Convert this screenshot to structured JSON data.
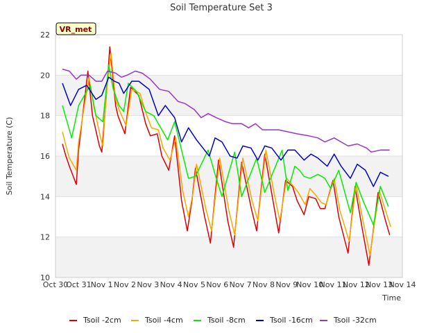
{
  "chart_data": {
    "type": "line",
    "title": "Soil Temperature Set 3",
    "xlabel": "Time",
    "ylabel": "Soil Temperature (C)",
    "ylim": [
      10,
      22
    ],
    "xlim": [
      0,
      15
    ],
    "yticks": [
      10,
      12,
      14,
      16,
      18,
      20,
      22
    ],
    "xticks": [
      {
        "x": 0,
        "label": "Oct 30"
      },
      {
        "x": 1,
        "label": "Oct 31"
      },
      {
        "x": 2,
        "label": "Nov 1"
      },
      {
        "x": 3,
        "label": "Nov 2"
      },
      {
        "x": 4,
        "label": "Nov 3"
      },
      {
        "x": 5,
        "label": "Nov 4"
      },
      {
        "x": 6,
        "label": "Nov 5"
      },
      {
        "x": 7,
        "label": "Nov 6"
      },
      {
        "x": 8,
        "label": "Nov 7"
      },
      {
        "x": 9,
        "label": "Nov 8"
      },
      {
        "x": 10,
        "label": "Nov 9"
      },
      {
        "x": 11,
        "label": "Nov 10"
      },
      {
        "x": 12,
        "label": "Nov 11"
      },
      {
        "x": 13,
        "label": "Nov 12"
      },
      {
        "x": 14,
        "label": "Nov 13"
      },
      {
        "x": 15,
        "label": "Nov 14"
      }
    ],
    "x_units": "days since Oct 30",
    "station_label": "VR_met",
    "series": [
      {
        "name": "Tsoil -2cm",
        "color": "#dd0000",
        "x": [
          0.3,
          0.45,
          0.6,
          0.9,
          1.0,
          1.4,
          1.6,
          1.9,
          2.0,
          2.2,
          2.35,
          2.6,
          2.7,
          3.0,
          3.25,
          3.6,
          3.9,
          4.1,
          4.4,
          4.6,
          4.9,
          5.15,
          5.45,
          5.7,
          5.9,
          6.05,
          6.45,
          6.7,
          7.05,
          7.45,
          7.7,
          8.05,
          8.45,
          8.7,
          9.05,
          9.45,
          9.65,
          9.95,
          10.25,
          10.45,
          10.75,
          10.95,
          11.25,
          11.45,
          11.65,
          12.0,
          12.25,
          12.65,
          12.95,
          13.25,
          13.55,
          13.95,
          14.25,
          14.45
        ],
        "y": [
          16.6,
          16.0,
          15.5,
          14.6,
          16.3,
          20.2,
          18.0,
          16.5,
          16.2,
          19.0,
          21.4,
          18.5,
          18.0,
          17.1,
          19.4,
          19.0,
          17.6,
          17.0,
          17.1,
          16.0,
          15.3,
          17.0,
          13.8,
          12.3,
          13.8,
          15.4,
          13.0,
          11.7,
          15.8,
          12.8,
          11.5,
          15.7,
          13.5,
          12.3,
          16.1,
          13.5,
          12.2,
          14.8,
          14.5,
          13.8,
          13.1,
          14.0,
          13.9,
          13.4,
          13.4,
          14.8,
          13.0,
          11.2,
          14.5,
          12.5,
          10.6,
          14.2,
          12.9,
          12.1
        ]
      },
      {
        "name": "Tsoil -4cm",
        "color": "#ffa500",
        "x": [
          0.3,
          0.5,
          0.6,
          0.9,
          1.0,
          1.45,
          1.65,
          1.95,
          2.05,
          2.2,
          2.4,
          2.6,
          2.75,
          3.05,
          3.3,
          3.65,
          3.95,
          4.15,
          4.45,
          4.65,
          4.95,
          5.2,
          5.5,
          5.75,
          5.95,
          6.1,
          6.5,
          6.75,
          7.1,
          7.5,
          7.75,
          8.1,
          8.5,
          8.75,
          9.1,
          9.5,
          9.7,
          10.0,
          10.3,
          10.5,
          10.8,
          11.0,
          11.3,
          11.5,
          11.7,
          12.05,
          12.3,
          12.7,
          13.0,
          13.3,
          13.6,
          14.0,
          14.3,
          14.5
        ],
        "y": [
          17.2,
          16.3,
          15.9,
          15.3,
          16.7,
          19.9,
          18.5,
          16.9,
          16.5,
          19.1,
          21.1,
          18.8,
          18.3,
          17.5,
          19.3,
          19.1,
          18.0,
          17.4,
          17.3,
          16.4,
          15.8,
          16.9,
          14.3,
          13.0,
          14.2,
          15.6,
          13.4,
          12.3,
          15.9,
          13.3,
          12.1,
          15.9,
          13.8,
          12.8,
          16.3,
          13.9,
          12.8,
          14.9,
          14.5,
          14.2,
          13.6,
          14.4,
          14.0,
          13.7,
          13.6,
          14.9,
          13.3,
          11.8,
          14.6,
          12.8,
          11.1,
          14.3,
          13.2,
          12.5
        ]
      },
      {
        "name": "Tsoil -8cm",
        "color": "#00ee00",
        "x": [
          0.3,
          0.7,
          1.0,
          1.5,
          1.75,
          2.05,
          2.3,
          2.5,
          2.75,
          2.95,
          3.15,
          3.5,
          3.9,
          4.25,
          4.85,
          5.15,
          5.75,
          6.05,
          6.6,
          6.9,
          7.2,
          7.75,
          8.05,
          8.7,
          9.05,
          9.8,
          10.05,
          10.35,
          10.55,
          10.75,
          11.0,
          11.35,
          11.65,
          11.9,
          12.25,
          12.75,
          13.0,
          13.3,
          13.75,
          14.05,
          14.4
        ],
        "y": [
          18.5,
          16.9,
          18.5,
          19.5,
          18.0,
          17.7,
          20.5,
          19.3,
          18.5,
          18.2,
          19.6,
          19.2,
          18.2,
          18.0,
          16.8,
          17.7,
          14.9,
          15.0,
          16.3,
          15.1,
          14.0,
          16.2,
          14.0,
          15.9,
          14.2,
          16.3,
          14.3,
          15.5,
          15.3,
          15.0,
          14.9,
          15.1,
          14.9,
          14.4,
          15.3,
          13.2,
          14.7,
          13.8,
          12.6,
          14.5,
          13.5
        ]
      },
      {
        "name": "Tsoil -16cm",
        "color": "#0000cc",
        "x": [
          0.3,
          0.65,
          1.0,
          1.35,
          1.75,
          2.0,
          2.3,
          2.55,
          2.75,
          2.95,
          3.3,
          3.6,
          4.05,
          4.45,
          4.75,
          5.15,
          5.45,
          5.75,
          6.1,
          6.65,
          6.9,
          7.2,
          7.55,
          7.85,
          8.1,
          8.45,
          8.75,
          9.05,
          9.35,
          9.75,
          10.05,
          10.35,
          10.75,
          11.05,
          11.35,
          11.75,
          12.05,
          12.35,
          12.75,
          13.05,
          13.4,
          13.75,
          14.05,
          14.4
        ],
        "y": [
          19.6,
          18.5,
          19.3,
          19.5,
          18.8,
          19.0,
          19.9,
          19.7,
          19.6,
          19.1,
          19.7,
          19.7,
          19.3,
          18.0,
          18.5,
          17.9,
          16.7,
          17.4,
          16.8,
          16.0,
          16.9,
          16.7,
          16.0,
          15.9,
          16.5,
          16.4,
          15.8,
          16.5,
          16.4,
          15.8,
          16.3,
          16.3,
          15.8,
          16.1,
          15.9,
          15.5,
          16.1,
          15.5,
          14.9,
          15.6,
          15.3,
          14.5,
          15.2,
          15.0
        ]
      },
      {
        "name": "Tsoil -32cm",
        "color": "#9933cc",
        "x": [
          0.3,
          0.6,
          0.9,
          1.1,
          1.45,
          1.75,
          2.0,
          2.25,
          2.6,
          2.85,
          3.1,
          3.45,
          3.75,
          4.1,
          4.5,
          4.9,
          5.3,
          5.6,
          6.0,
          6.3,
          6.6,
          6.95,
          7.35,
          7.65,
          8.05,
          8.35,
          8.65,
          8.95,
          9.35,
          9.65,
          10.05,
          10.45,
          10.95,
          11.35,
          11.65,
          12.05,
          12.35,
          12.65,
          13.05,
          13.45,
          13.65,
          14.05,
          14.45
        ],
        "y": [
          20.3,
          20.2,
          19.8,
          20.0,
          20.0,
          19.7,
          19.7,
          20.2,
          20.1,
          19.9,
          20.0,
          20.2,
          20.1,
          19.8,
          19.3,
          19.2,
          18.7,
          18.6,
          18.3,
          17.9,
          18.1,
          17.9,
          17.7,
          17.6,
          17.6,
          17.4,
          17.6,
          17.3,
          17.3,
          17.3,
          17.2,
          17.1,
          17.0,
          16.9,
          16.7,
          16.9,
          16.7,
          16.5,
          16.6,
          16.4,
          16.2,
          16.3,
          16.3
        ]
      }
    ]
  }
}
